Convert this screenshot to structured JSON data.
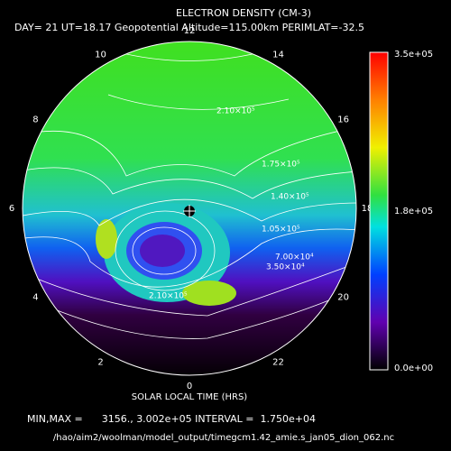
{
  "title": "ELECTRON DENSITY (CM-3)",
  "subtitle": "DAY= 21 UT=18.17 Geopotential Altitude=115.00km PERIMLAT=-32.5",
  "local_time_labels": [
    "0",
    "2",
    "4",
    "6",
    "8",
    "10",
    "12",
    "14",
    "16",
    "18",
    "20",
    "22"
  ],
  "contour_labels": [
    "2.10×10⁵",
    "1.75×10⁵",
    "1.40×10⁵",
    "1.05×10⁵",
    "7.00×10⁴",
    "3.50×10⁴",
    "2.10×10⁵"
  ],
  "colorbar_labels": [
    "3.5e+05",
    "1.8e+05",
    "0.0e+00"
  ],
  "axis_label": "SOLAR LOCAL TIME (HRS)",
  "stats": "MIN,MAX =      3156., 3.002e+05 INTERVAL =  1.750e+04",
  "file_path": "/hao/aim2/woolman/model_output/timegcm1.42_amie.s_jan05_dion_062.nc"
}
